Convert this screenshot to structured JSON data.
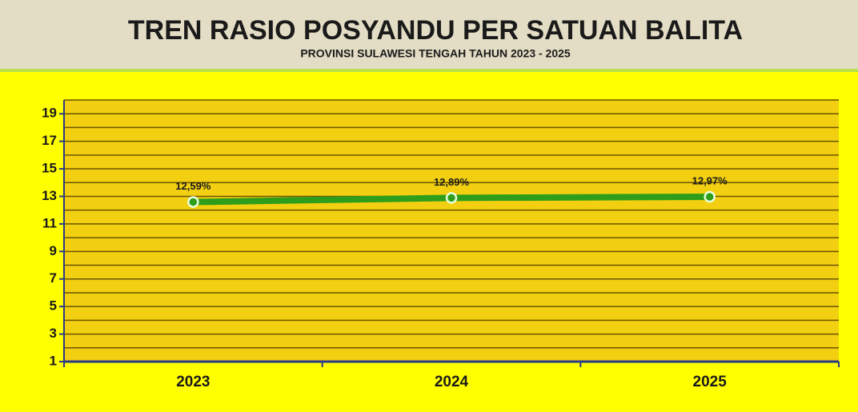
{
  "chart_data": {
    "type": "line",
    "title": "TREN RASIO POSYANDU PER SATUAN BALITA",
    "subtitle": "PROVINSI SULAWESI TENGAH TAHUN 2023 - 2025",
    "categories": [
      "2023",
      "2024",
      "2025"
    ],
    "series": [
      {
        "name": "Rasio",
        "color": "#2e9e1a",
        "values": [
          12.59,
          12.89,
          12.97
        ],
        "value_labels": [
          "12,59%",
          "12,89%",
          "12,97%"
        ]
      }
    ],
    "ylim": [
      1,
      20
    ],
    "yticks": [
      1,
      3,
      5,
      7,
      9,
      11,
      13,
      15,
      17,
      19
    ],
    "minor_yticks": [
      2,
      4,
      6,
      8,
      10,
      12,
      14,
      16,
      18,
      20
    ],
    "grid": true
  }
}
